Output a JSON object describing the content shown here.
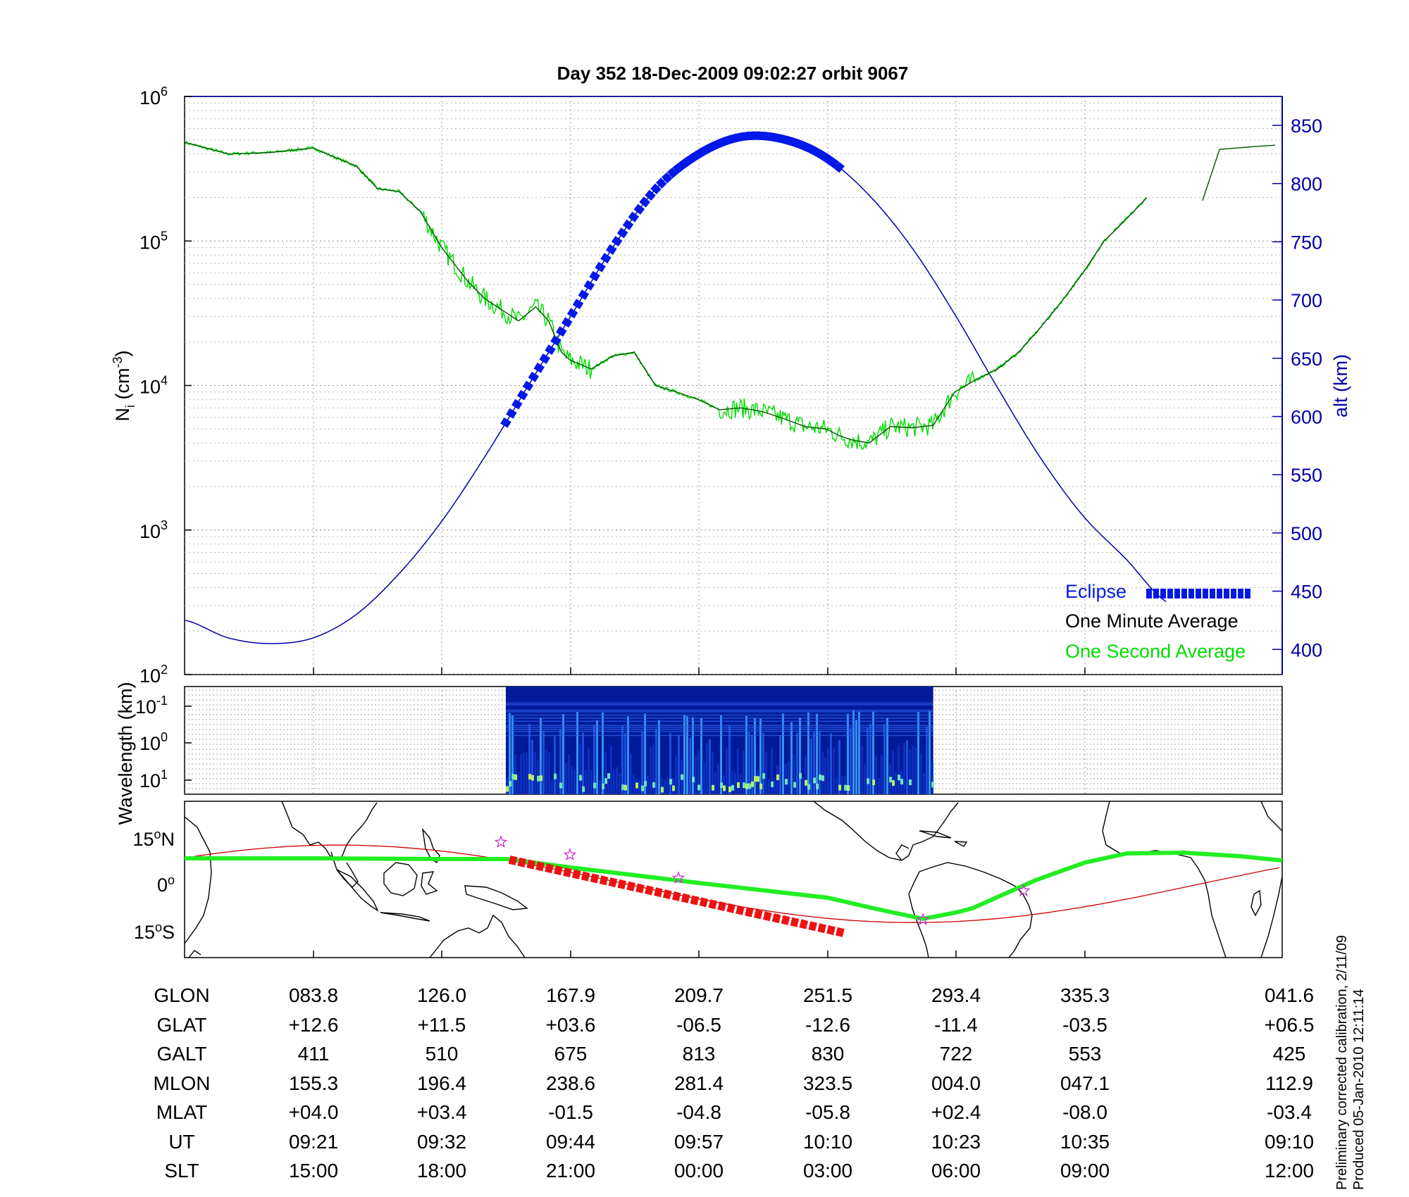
{
  "title": "Day 352  18-Dec-2009 09:02:27   orbit 9067",
  "top_panel": {
    "ylabel_left": "N",
    "ylabel_left_sub": "i",
    "ylabel_left_unit_prefix": " (cm",
    "ylabel_left_unit_sup": "-3",
    "ylabel_left_unit_suffix": ")",
    "ylabel_right": "alt (km)",
    "left_ticks": [
      {
        "base": "10",
        "exp": "6",
        "value": 1000000
      },
      {
        "base": "10",
        "exp": "5",
        "value": 100000
      },
      {
        "base": "10",
        "exp": "4",
        "value": 10000
      },
      {
        "base": "10",
        "exp": "3",
        "value": 1000
      },
      {
        "base": "10",
        "exp": "2",
        "value": 100
      }
    ],
    "right_ticks": [
      "850",
      "800",
      "750",
      "700",
      "650",
      "600",
      "550",
      "500",
      "450",
      "400"
    ],
    "legend": [
      {
        "label": "Eclipse",
        "color": "#0018e8"
      },
      {
        "label": "One Minute Average",
        "color": "#000000"
      },
      {
        "label": "One Second Average",
        "color": "#00dd00"
      }
    ]
  },
  "middle_panel": {
    "ylabel": "Wavelength (km)",
    "ticks": [
      {
        "base": "10",
        "exp": "-1"
      },
      {
        "base": "10",
        "exp": "0"
      },
      {
        "base": "10",
        "exp": "1"
      }
    ]
  },
  "map_panel": {
    "lat_ticks": [
      {
        "value": "15",
        "hemi": "N"
      },
      {
        "value": "0",
        "hemi": ""
      },
      {
        "value": "15",
        "hemi": "S"
      }
    ]
  },
  "table": {
    "rows": [
      {
        "label": "GLON",
        "values": [
          "083.8",
          "126.0",
          "167.9",
          "209.7",
          "251.5",
          "293.4",
          "335.3",
          "041.6"
        ]
      },
      {
        "label": "GLAT",
        "values": [
          "+12.6",
          "+11.5",
          "+03.6",
          "-06.5",
          "-12.6",
          "-11.4",
          "-03.5",
          "+06.5"
        ]
      },
      {
        "label": "GALT",
        "values": [
          "411",
          "510",
          "675",
          "813",
          "830",
          "722",
          "553",
          "425"
        ]
      },
      {
        "label": "MLON",
        "values": [
          "155.3",
          "196.4",
          "238.6",
          "281.4",
          "323.5",
          "004.0",
          "047.1",
          "112.9"
        ]
      },
      {
        "label": "MLAT",
        "values": [
          "+04.0",
          "+03.4",
          "-01.5",
          "-04.8",
          "-05.8",
          "+02.4",
          "-08.0",
          "-03.4"
        ]
      },
      {
        "label": "UT",
        "values": [
          "09:21",
          "09:32",
          "09:44",
          "09:57",
          "10:10",
          "10:23",
          "10:35",
          "09:10"
        ]
      },
      {
        "label": "SLT",
        "values": [
          "15:00",
          "18:00",
          "21:00",
          "00:00",
          "03:00",
          "06:00",
          "09:00",
          "12:00"
        ]
      }
    ]
  },
  "footnote": {
    "line1": "Preliminary corrected calibration, 2/11/09",
    "line2": "Produced 05-Jan-2010 12:11:14"
  },
  "colors": {
    "altitude": "#0000aa",
    "eclipse": "#0018e8",
    "minute_avg": "#005500",
    "second_avg": "#00dd00",
    "orbit_track": "#22ee22",
    "magnetic_track": "#cc0000",
    "map_eclipse": "#ee1111",
    "stars": "#cc33cc",
    "spectrogram_bg": "#001a99"
  },
  "chart_data": [
    {
      "type": "line",
      "description_series": "Ion density and satellite altitude versus orbit position",
      "x_axis": "SLT",
      "x_ticks": [
        "15:00",
        "18:00",
        "21:00",
        "00:00",
        "03:00",
        "06:00",
        "09:00",
        "12:00"
      ],
      "y_left": {
        "label": "Ni (cm-3)",
        "scale": "log",
        "range": [
          100,
          1000000
        ]
      },
      "y_right": {
        "label": "alt (km)",
        "range": [
          375,
          875
        ]
      },
      "grid": true,
      "legend_position": "bottom-right",
      "series": [
        {
          "name": "One Minute Average",
          "axis": "left",
          "x_slt": [
            12.0,
            13.0,
            14.0,
            15.0,
            15.4,
            16.0,
            16.5,
            17.0,
            17.5,
            18.0,
            18.6,
            19.0,
            19.5,
            19.8,
            20.2,
            20.5,
            20.8,
            21.0,
            21.5,
            22.0,
            22.5,
            23.0,
            23.5,
            24.0,
            24.5,
            25.0,
            25.5,
            26.0,
            26.5,
            27.0,
            27.3,
            27.6,
            28.0,
            28.5,
            29.0,
            29.5,
            30.0,
            30.5,
            31.0,
            31.5,
            32.0,
            32.5,
            33.0,
            33.5,
            34.0,
            34.5,
            35.0
          ],
          "values": [
            480000,
            400000,
            410000,
            440000,
            390000,
            330000,
            230000,
            220000,
            160000,
            90000,
            53000,
            40000,
            32000,
            28000,
            35000,
            28000,
            17000,
            15000,
            13000,
            16000,
            17000,
            10000,
            9000,
            8000,
            6800,
            7000,
            6600,
            5900,
            5200,
            5000,
            4500,
            4200,
            4000,
            5200,
            5100,
            5300,
            9000,
            11000,
            13000,
            17000,
            25000,
            38000,
            60000,
            100000,
            140000,
            200000,
            null
          ]
        },
        {
          "name": "One Minute Average (end segment)",
          "axis": "left",
          "x_slt": [
            35.8,
            36.2,
            36.6,
            37.0,
            37.5
          ],
          "values": [
            190000,
            430000,
            440000,
            450000,
            460000
          ]
        },
        {
          "name": "Altitude",
          "axis": "right",
          "x_slt": [
            12.0,
            13.0,
            14.0,
            15.0,
            16.0,
            17.0,
            18.0,
            19.0,
            20.0,
            21.0,
            22.0,
            23.0,
            24.0,
            25.0,
            26.0,
            27.0,
            28.0,
            29.0,
            30.0,
            31.0,
            32.0,
            33.0,
            34.0,
            35.0
          ],
          "values": [
            425,
            410,
            405,
            410,
            430,
            465,
            510,
            565,
            625,
            685,
            745,
            795,
            825,
            840,
            838,
            822,
            790,
            745,
            688,
            625,
            565,
            515,
            478,
            440
          ]
        }
      ],
      "eclipse_slt_range": [
        19.5,
        27.4
      ]
    },
    {
      "type": "heatmap",
      "ylabel": "Wavelength (km)",
      "y_scale": "log",
      "data_slt_range": [
        19.5,
        29.5
      ]
    }
  ]
}
